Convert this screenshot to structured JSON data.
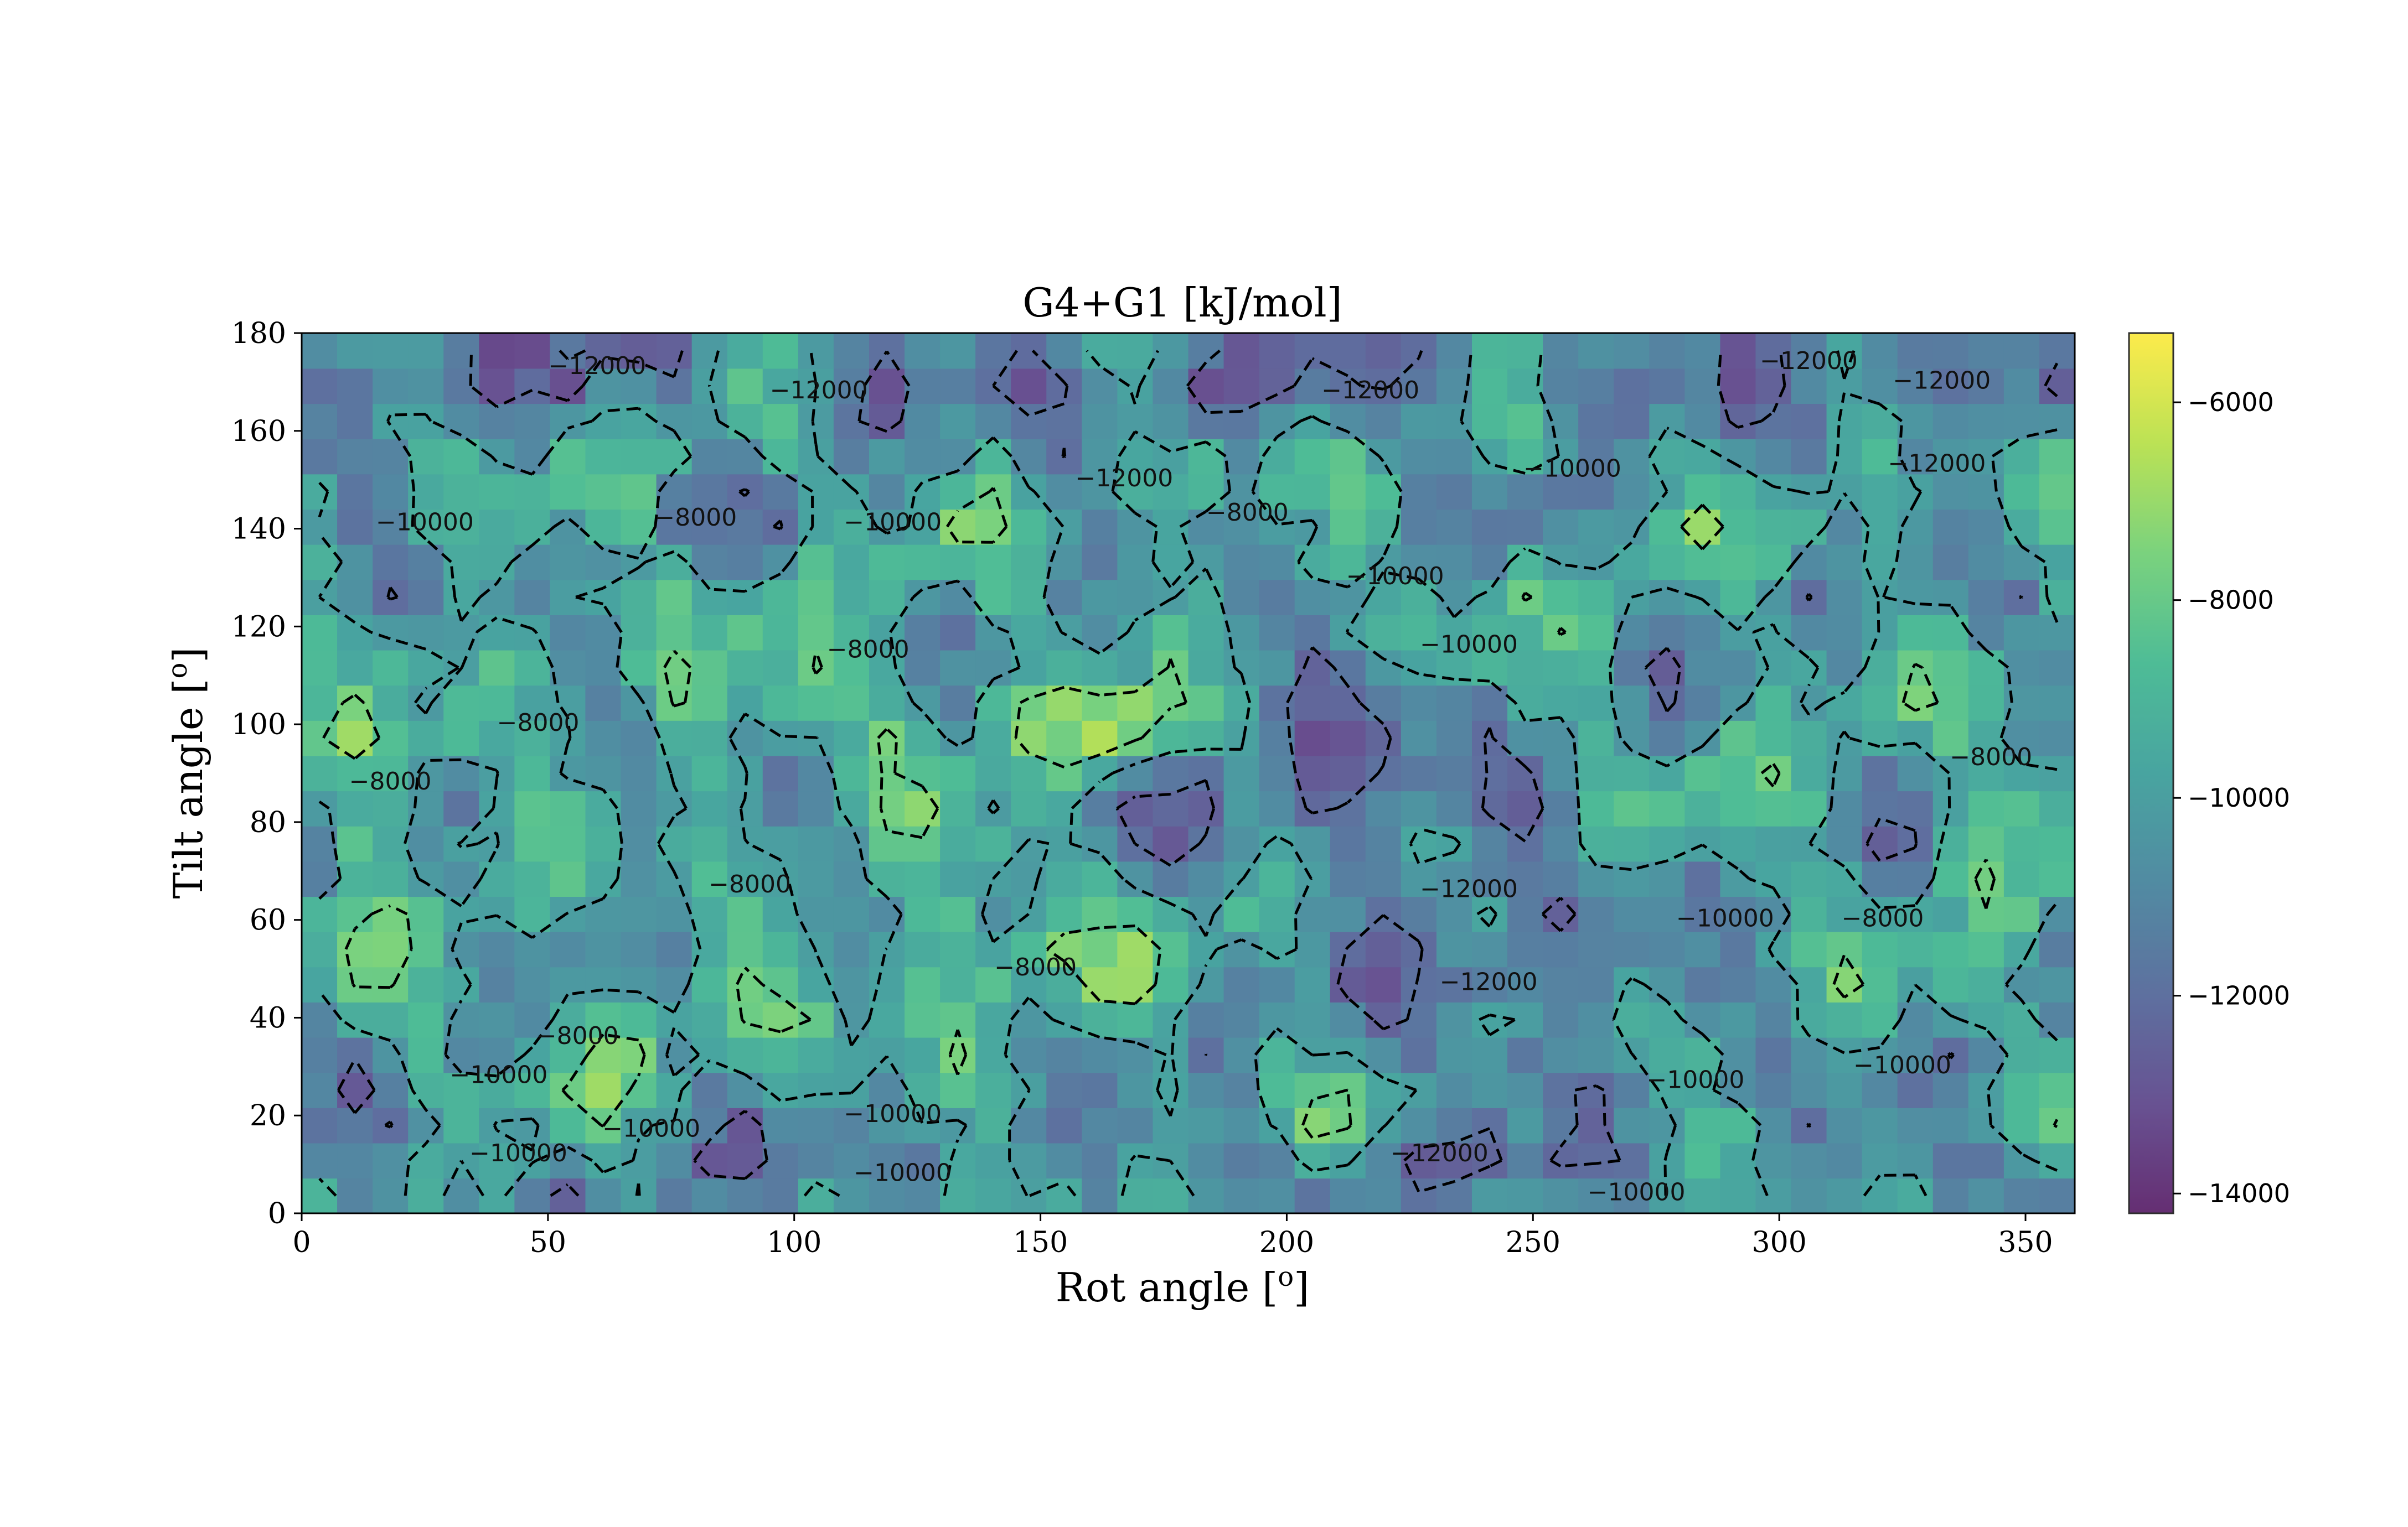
{
  "chart_data": {
    "type": "heatmap",
    "title": "G4+G1 [kJ/mol]",
    "xlabel": "Rot angle [",
    "xlabel_sup": "o",
    "xlabel_end": "]",
    "ylabel": "Tilt angle [",
    "ylabel_sup": "o",
    "ylabel_end": "]",
    "xlim": [
      0,
      360
    ],
    "ylim": [
      0,
      180
    ],
    "x_ticks": [
      "0",
      "50",
      "100",
      "150",
      "200",
      "250",
      "300",
      "350"
    ],
    "y_ticks": [
      "0",
      "20",
      "40",
      "60",
      "80",
      "100",
      "120",
      "140",
      "160",
      "180"
    ],
    "colorbar": {
      "colormap": "viridis",
      "range": [
        -14200,
        -5300
      ],
      "ticks": [
        "−6000",
        "−8000",
        "−10000",
        "−12000",
        "−14000"
      ]
    },
    "grid_resolution_deg": 7.2,
    "contour_levels": [
      -12000,
      -10000,
      -8000
    ],
    "contour_style": "dashed black",
    "contour_labels": [
      {
        "text": "−12000",
        "x": 60,
        "y": 173
      },
      {
        "text": "−12000",
        "x": 105,
        "y": 168
      },
      {
        "text": "−12000",
        "x": 217,
        "y": 168
      },
      {
        "text": "−12000",
        "x": 306,
        "y": 174
      },
      {
        "text": "−12000",
        "x": 333,
        "y": 170
      },
      {
        "text": "−12000",
        "x": 332,
        "y": 153
      },
      {
        "text": "−12000",
        "x": 167,
        "y": 150
      },
      {
        "text": "−10000",
        "x": 25,
        "y": 141
      },
      {
        "text": "−8000",
        "x": 80,
        "y": 142
      },
      {
        "text": "−10000",
        "x": 120,
        "y": 141
      },
      {
        "text": "−8000",
        "x": 192,
        "y": 143
      },
      {
        "text": "−10000",
        "x": 258,
        "y": 152
      },
      {
        "text": "−10000",
        "x": 222,
        "y": 130
      },
      {
        "text": "−10000",
        "x": 237,
        "y": 116
      },
      {
        "text": "−8000",
        "x": 115,
        "y": 115
      },
      {
        "text": "−8000",
        "x": 48,
        "y": 100
      },
      {
        "text": "−8000",
        "x": 18,
        "y": 88
      },
      {
        "text": "−8000",
        "x": 343,
        "y": 93
      },
      {
        "text": "−8000",
        "x": 91,
        "y": 67
      },
      {
        "text": "−12000",
        "x": 237,
        "y": 66
      },
      {
        "text": "−8000",
        "x": 321,
        "y": 60
      },
      {
        "text": "−10000",
        "x": 289,
        "y": 60
      },
      {
        "text": "−8000",
        "x": 149,
        "y": 50
      },
      {
        "text": "−12000",
        "x": 241,
        "y": 47
      },
      {
        "text": "−8000",
        "x": 56,
        "y": 36
      },
      {
        "text": "−10000",
        "x": 40,
        "y": 28
      },
      {
        "text": "−10000",
        "x": 325,
        "y": 30
      },
      {
        "text": "−10000",
        "x": 283,
        "y": 27
      },
      {
        "text": "−10000",
        "x": 120,
        "y": 20
      },
      {
        "text": "−10000",
        "x": 71,
        "y": 17
      },
      {
        "text": "−12000",
        "x": 231,
        "y": 12
      },
      {
        "text": "−10000",
        "x": 44,
        "y": 12
      },
      {
        "text": "−10000",
        "x": 122,
        "y": 8
      },
      {
        "text": "−10000",
        "x": 271,
        "y": 4
      }
    ]
  }
}
